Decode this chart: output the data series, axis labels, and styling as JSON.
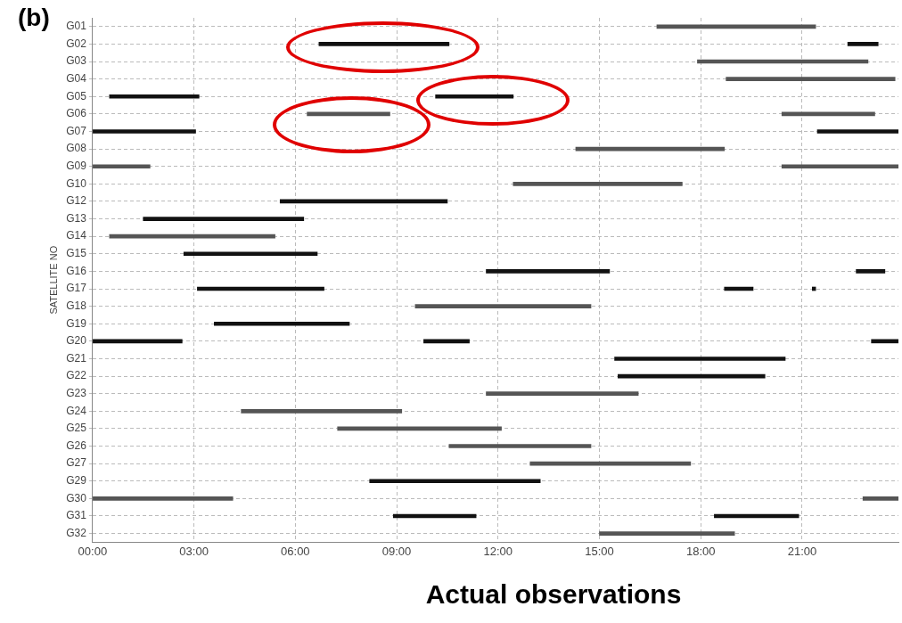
{
  "chart_data": {
    "type": "bar",
    "orientation": "horizontal",
    "title": "Actual observations",
    "ylabel": "SATELLITE NO",
    "annotations": [
      "(b)"
    ],
    "categories": [
      "G01",
      "G02",
      "G03",
      "G04",
      "G05",
      "G06",
      "G07",
      "G08",
      "G09",
      "G10",
      "G12",
      "G13",
      "G14",
      "G15",
      "G16",
      "G17",
      "G18",
      "G19",
      "G20",
      "G21",
      "G22",
      "G23",
      "G24",
      "G25",
      "G26",
      "G27",
      "G29",
      "G30",
      "G31",
      "G32"
    ],
    "series": [
      {
        "base": [
          16.7,
          6.7,
          17.9,
          18.75,
          0.5,
          6.35,
          0,
          14.3,
          0,
          12.45,
          5.55,
          1.5,
          0.5,
          2.7,
          11.65,
          3.1,
          9.55,
          3.6,
          0,
          15.45,
          15.55,
          11.65,
          4.4,
          7.25,
          10.55,
          12.95,
          8.2,
          0,
          8.9,
          15.0
        ],
        "values": [
          4.7,
          3.85,
          5.05,
          5.0,
          2.65,
          2.45,
          3.05,
          4.4,
          1.7,
          5.0,
          4.95,
          4.75,
          4.9,
          3.95,
          3.65,
          3.75,
          5.2,
          4.0,
          2.65,
          5.05,
          4.35,
          4.5,
          4.75,
          4.85,
          4.2,
          4.75,
          5.05,
          4.15,
          2.45,
          4.0
        ],
        "colors": [
          "#555555",
          "#111111",
          "#555555",
          "#555555",
          "#111111",
          "#555555",
          "#111111",
          "#555555",
          "#555555",
          "#555555",
          "#111111",
          "#111111",
          "#555555",
          "#111111",
          "#111111",
          "#111111",
          "#555555",
          "#111111",
          "#111111",
          "#111111",
          "#111111",
          "#555555",
          "#555555",
          "#555555",
          "#555555",
          "#555555",
          "#111111",
          "#555555",
          "#111111",
          "#555555"
        ]
      },
      {
        "base": [
          null,
          22.35,
          null,
          null,
          10.15,
          20.4,
          21.45,
          null,
          20.4,
          null,
          null,
          null,
          null,
          null,
          22.6,
          18.7,
          null,
          null,
          9.8,
          null,
          null,
          null,
          null,
          null,
          null,
          null,
          null,
          22.8,
          18.4,
          null
        ],
        "values": [
          null,
          0.9,
          null,
          null,
          2.3,
          2.75,
          2.4,
          null,
          3.45,
          null,
          null,
          null,
          null,
          null,
          0.85,
          0.85,
          null,
          null,
          1.35,
          null,
          null,
          null,
          null,
          null,
          null,
          null,
          null,
          1.05,
          2.5,
          null
        ],
        "colors": [
          null,
          "#111111",
          null,
          null,
          "#111111",
          "#555555",
          "#111111",
          null,
          "#555555",
          null,
          null,
          null,
          null,
          null,
          "#111111",
          "#111111",
          null,
          null,
          "#111111",
          null,
          null,
          null,
          null,
          null,
          null,
          null,
          null,
          "#555555",
          "#111111",
          null
        ]
      },
      {
        "base": [
          null,
          null,
          null,
          null,
          null,
          null,
          null,
          null,
          null,
          null,
          null,
          null,
          null,
          null,
          null,
          21.3,
          null,
          null,
          23.05,
          null,
          null,
          null,
          null,
          null,
          null,
          null,
          null,
          null,
          null,
          null
        ],
        "values": [
          null,
          null,
          null,
          null,
          null,
          null,
          null,
          null,
          null,
          null,
          null,
          null,
          null,
          null,
          null,
          0.1,
          null,
          null,
          0.8,
          null,
          null,
          null,
          null,
          null,
          null,
          null,
          null,
          null,
          null,
          null
        ],
        "colors": [
          null,
          null,
          null,
          null,
          null,
          null,
          null,
          null,
          null,
          null,
          null,
          null,
          null,
          null,
          null,
          "#111111",
          null,
          null,
          "#111111",
          null,
          null,
          null,
          null,
          null,
          null,
          null,
          null,
          null,
          null,
          null
        ]
      }
    ],
    "xlim": [
      0,
      23.85
    ],
    "xticks": [
      {
        "value": 0,
        "label": "00:00"
      },
      {
        "value": 3,
        "label": "03:00"
      },
      {
        "value": 6,
        "label": "06:00"
      },
      {
        "value": 9,
        "label": "09:00"
      },
      {
        "value": 12,
        "label": "12:00"
      },
      {
        "value": 15,
        "label": "15:00"
      },
      {
        "value": 18,
        "label": "18:00"
      },
      {
        "value": 21,
        "label": "21:00"
      }
    ],
    "grid": true
  }
}
